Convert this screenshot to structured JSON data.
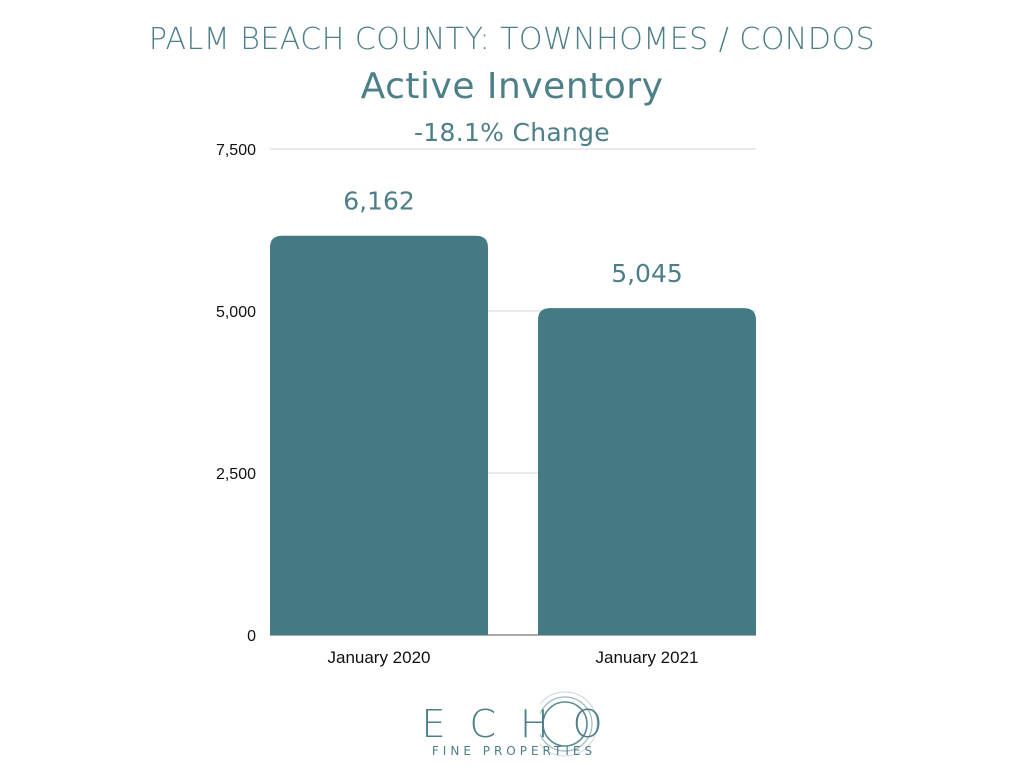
{
  "header": {
    "supertitle": "PALM BEACH COUNTY: TOWNHOMES / CONDOS",
    "title": "Active Inventory",
    "subtitle": "-18.1% Change"
  },
  "chart_data": {
    "type": "bar",
    "title": "Active Inventory",
    "subtitle": "-18.1% Change",
    "categories": [
      "January 2020",
      "January 2021"
    ],
    "values": [
      6162,
      5045
    ],
    "data_labels": [
      "6,162",
      "5,045"
    ],
    "ylim": [
      0,
      7500
    ],
    "yticks": [
      0,
      2500,
      5000,
      7500
    ],
    "ytick_labels": [
      "0",
      "2,500",
      "5,000",
      "7,500"
    ],
    "xlabel": "",
    "ylabel": "",
    "grid": true,
    "bar_color": "#437a83"
  },
  "logo": {
    "main": "ECHO",
    "sub": "FINE PROPERTIES"
  },
  "colors": {
    "accent": "#4d7f88",
    "bar": "#437a83",
    "grid": "#d6d6d6"
  }
}
